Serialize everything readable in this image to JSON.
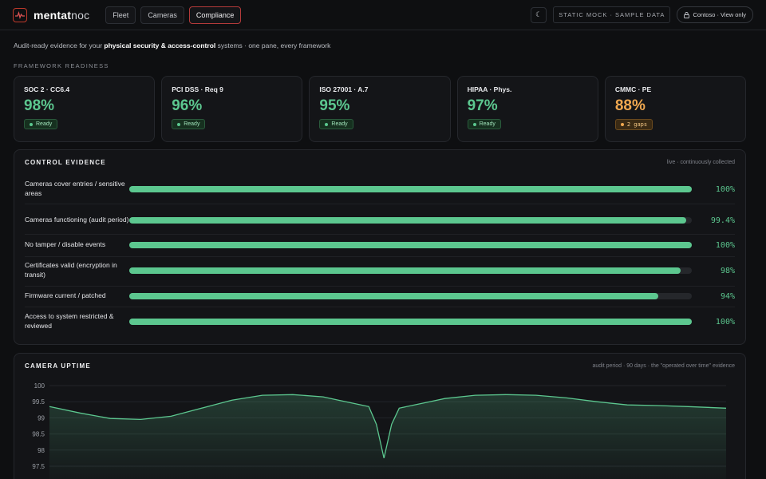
{
  "app": {
    "brand_bold": "mentat",
    "brand_light": "noc"
  },
  "nav": {
    "tabs": [
      {
        "label": "Fleet"
      },
      {
        "label": "Cameras"
      },
      {
        "label": "Compliance"
      }
    ]
  },
  "header": {
    "theme_glyph": "☾",
    "mock_badge": "STATIC MOCK · SAMPLE DATA",
    "tenant": "Contoso · View only"
  },
  "intro": {
    "prefix": "Audit-ready evidence for your ",
    "emphasis": "physical security & access-control",
    "suffix": " systems · one pane, every framework"
  },
  "frameworks": {
    "label": "FRAMEWORK READINESS",
    "cards": [
      {
        "title": "SOC 2 · CC6.4",
        "value": "98%",
        "status": "Ready",
        "state": "ok"
      },
      {
        "title": "PCI DSS · Req 9",
        "value": "96%",
        "status": "Ready",
        "state": "ok"
      },
      {
        "title": "ISO 27001 · A.7",
        "value": "95%",
        "status": "Ready",
        "state": "ok"
      },
      {
        "title": "HIPAA · Phys.",
        "value": "97%",
        "status": "Ready",
        "state": "ok"
      },
      {
        "title": "CMMC · PE",
        "value": "88%",
        "status": "2 gaps",
        "state": "warn"
      }
    ]
  },
  "evidence": {
    "title": "CONTROL EVIDENCE",
    "meta": "live · continuously collected",
    "rows": [
      {
        "label": "Cameras cover entries / sensitive areas",
        "pct_text": "100%",
        "fraction": 1.0
      },
      {
        "label": "Cameras functioning (audit period)",
        "pct_text": "99.4%",
        "fraction": 0.99
      },
      {
        "label": "No tamper / disable events",
        "pct_text": "100%",
        "fraction": 1.0
      },
      {
        "label": "Certificates valid (encryption in transit)",
        "pct_text": "98%",
        "fraction": 0.98
      },
      {
        "label": "Firmware current / patched",
        "pct_text": "94%",
        "fraction": 0.94
      },
      {
        "label": "Access to system restricted & reviewed",
        "pct_text": "100%",
        "fraction": 1.0
      }
    ]
  },
  "uptime": {
    "title": "CAMERA UPTIME",
    "meta": "audit period · 90 days · the \"operated over time\" evidence"
  },
  "chart_data": {
    "type": "area",
    "title": "CAMERA UPTIME",
    "ylim": [
      97.5,
      100
    ],
    "yticks": [
      "100",
      "99.5",
      "99",
      "98.5",
      "98",
      "97.5"
    ],
    "ytick_values": [
      100,
      99.5,
      99,
      98.5,
      98,
      97.5
    ],
    "grid": true,
    "series": [
      {
        "x": [
          0,
          4,
          8,
          12,
          16,
          20,
          24,
          28,
          32,
          36,
          38,
          40,
          42,
          43,
          44,
          45,
          46,
          48,
          50,
          52,
          56,
          60,
          64,
          68,
          72,
          76,
          80,
          84,
          89
        ],
        "values": [
          99.35,
          99.15,
          98.98,
          98.95,
          99.05,
          99.3,
          99.55,
          99.7,
          99.72,
          99.65,
          99.55,
          99.45,
          99.35,
          98.8,
          97.75,
          98.8,
          99.3,
          99.4,
          99.5,
          99.6,
          99.7,
          99.72,
          99.7,
          99.62,
          99.5,
          99.4,
          99.38,
          99.35,
          99.3
        ]
      }
    ],
    "color": "#5cc78f"
  }
}
